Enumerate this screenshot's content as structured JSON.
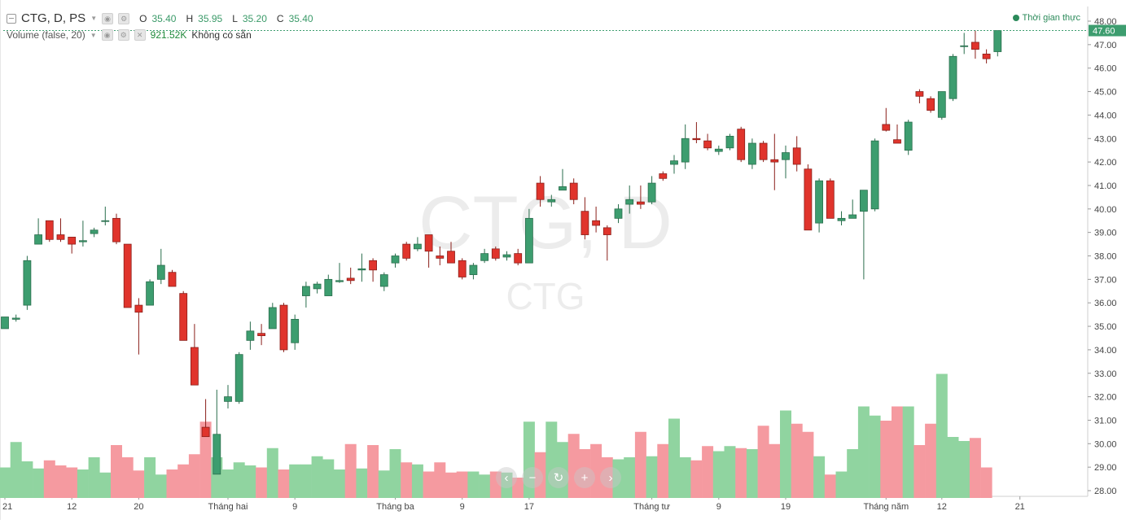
{
  "legend": {
    "symbol": "CTG, D, PS",
    "open_label": "O",
    "open_value": "35.40",
    "high_label": "H",
    "high_value": "35.95",
    "low_label": "L",
    "low_value": "35.20",
    "close_label": "C",
    "close_value": "35.40",
    "volume_label": "Volume (false, 20)",
    "volume_value": "921.52K",
    "volume_status": "Không có sẵn"
  },
  "realtime_label": "Thời gian thực",
  "watermark": {
    "main": "CTG, D",
    "sub": "CTG"
  },
  "navigation_icons": [
    "chevron-left-icon",
    "minus-icon",
    "reset-icon",
    "plus-icon",
    "chevron-right-icon"
  ],
  "colors": {
    "up": "#3d9d6f",
    "down": "#e0342c",
    "vol_up": "#90d4a0",
    "vol_down": "#f59aa0",
    "last_price_badge": "#3d9d6f",
    "axis_text": "#444444",
    "grid": "#e9e9e9"
  },
  "chart_data": {
    "type": "candlestick",
    "symbol": "CTG",
    "interval": "D",
    "last_price": "47.60",
    "y_axis": {
      "ticks": [
        "28.00",
        "29.00",
        "30.00",
        "31.00",
        "32.00",
        "33.00",
        "34.00",
        "35.00",
        "36.00",
        "37.00",
        "38.00",
        "39.00",
        "40.00",
        "41.00",
        "42.00",
        "43.00",
        "44.00",
        "45.00",
        "46.00",
        "47.00",
        "48.00"
      ],
      "range": [
        27.6,
        48.2
      ]
    },
    "x_axis": {
      "labels": [
        {
          "i": 0,
          "text": "21"
        },
        {
          "i": 6,
          "text": "12"
        },
        {
          "i": 12,
          "text": "20"
        },
        {
          "i": 20,
          "text": "Tháng hai"
        },
        {
          "i": 26,
          "text": "9"
        },
        {
          "i": 35,
          "text": "Tháng ba"
        },
        {
          "i": 41,
          "text": "9"
        },
        {
          "i": 47,
          "text": "17"
        },
        {
          "i": 58,
          "text": "Tháng tư"
        },
        {
          "i": 64,
          "text": "9"
        },
        {
          "i": 70,
          "text": "19"
        },
        {
          "i": 79,
          "text": "Tháng năm"
        },
        {
          "i": 84,
          "text": "12"
        },
        {
          "i": 91,
          "text": "21"
        }
      ]
    },
    "candles": [
      {
        "o": 34.9,
        "h": 35.3,
        "l": 34.9,
        "c": 35.4
      },
      {
        "o": 35.3,
        "h": 35.5,
        "l": 35.2,
        "c": 35.35
      },
      {
        "o": 35.9,
        "h": 38.0,
        "l": 35.7,
        "c": 37.8
      },
      {
        "o": 38.5,
        "h": 39.6,
        "l": 38.5,
        "c": 38.9
      },
      {
        "o": 39.5,
        "h": 39.5,
        "l": 38.6,
        "c": 38.7
      },
      {
        "o": 38.9,
        "h": 39.6,
        "l": 38.6,
        "c": 38.7
      },
      {
        "o": 38.8,
        "h": 38.8,
        "l": 38.1,
        "c": 38.5
      },
      {
        "o": 38.6,
        "h": 39.5,
        "l": 38.4,
        "c": 38.65
      },
      {
        "o": 38.95,
        "h": 39.2,
        "l": 38.8,
        "c": 39.1
      },
      {
        "o": 39.5,
        "h": 40.1,
        "l": 39.3,
        "c": 39.5
      },
      {
        "o": 39.6,
        "h": 39.8,
        "l": 38.5,
        "c": 38.6
      },
      {
        "o": 38.5,
        "h": 38.5,
        "l": 35.8,
        "c": 35.8
      },
      {
        "o": 35.9,
        "h": 36.2,
        "l": 33.8,
        "c": 35.6
      },
      {
        "o": 35.9,
        "h": 37.0,
        "l": 35.9,
        "c": 36.9
      },
      {
        "o": 37.0,
        "h": 38.3,
        "l": 36.8,
        "c": 37.6
      },
      {
        "o": 37.3,
        "h": 37.4,
        "l": 36.7,
        "c": 36.7
      },
      {
        "o": 36.4,
        "h": 36.5,
        "l": 34.4,
        "c": 34.4
      },
      {
        "o": 34.1,
        "h": 35.1,
        "l": 32.5,
        "c": 32.5
      },
      {
        "o": 30.7,
        "h": 31.9,
        "l": 30.3,
        "c": 30.3
      },
      {
        "o": 28.7,
        "h": 32.3,
        "l": 28.7,
        "c": 30.4
      },
      {
        "o": 31.8,
        "h": 32.5,
        "l": 31.5,
        "c": 32.0
      },
      {
        "o": 31.8,
        "h": 33.9,
        "l": 31.7,
        "c": 33.8
      },
      {
        "o": 34.4,
        "h": 35.2,
        "l": 34.0,
        "c": 34.8
      },
      {
        "o": 34.7,
        "h": 35.1,
        "l": 34.2,
        "c": 34.6
      },
      {
        "o": 34.9,
        "h": 36.0,
        "l": 34.9,
        "c": 35.8
      },
      {
        "o": 35.9,
        "h": 36.0,
        "l": 33.9,
        "c": 34.0
      },
      {
        "o": 34.3,
        "h": 35.5,
        "l": 34.0,
        "c": 35.3
      },
      {
        "o": 36.3,
        "h": 36.9,
        "l": 35.8,
        "c": 36.7
      },
      {
        "o": 36.6,
        "h": 36.9,
        "l": 36.4,
        "c": 36.8
      },
      {
        "o": 36.3,
        "h": 37.2,
        "l": 36.3,
        "c": 37.0
      },
      {
        "o": 36.9,
        "h": 37.7,
        "l": 36.85,
        "c": 36.95
      },
      {
        "o": 37.05,
        "h": 37.5,
        "l": 36.8,
        "c": 36.95
      },
      {
        "o": 37.4,
        "h": 38.1,
        "l": 36.9,
        "c": 37.45
      },
      {
        "o": 37.8,
        "h": 37.9,
        "l": 36.9,
        "c": 37.4
      },
      {
        "o": 36.7,
        "h": 37.3,
        "l": 36.5,
        "c": 37.2
      },
      {
        "o": 37.7,
        "h": 38.1,
        "l": 37.5,
        "c": 38.0
      },
      {
        "o": 38.5,
        "h": 38.6,
        "l": 37.8,
        "c": 37.9
      },
      {
        "o": 38.3,
        "h": 38.8,
        "l": 38.2,
        "c": 38.5
      },
      {
        "o": 38.9,
        "h": 38.9,
        "l": 37.5,
        "c": 38.2
      },
      {
        "o": 38.0,
        "h": 38.4,
        "l": 37.6,
        "c": 37.9
      },
      {
        "o": 38.2,
        "h": 38.6,
        "l": 37.7,
        "c": 37.7
      },
      {
        "o": 37.8,
        "h": 37.9,
        "l": 37.0,
        "c": 37.1
      },
      {
        "o": 37.2,
        "h": 37.7,
        "l": 37.0,
        "c": 37.6
      },
      {
        "o": 37.8,
        "h": 38.3,
        "l": 37.7,
        "c": 38.1
      },
      {
        "o": 38.3,
        "h": 38.4,
        "l": 37.8,
        "c": 37.9
      },
      {
        "o": 37.95,
        "h": 38.2,
        "l": 37.8,
        "c": 38.05
      },
      {
        "o": 38.1,
        "h": 38.3,
        "l": 37.6,
        "c": 37.7
      },
      {
        "o": 37.7,
        "h": 40.0,
        "l": 37.7,
        "c": 39.6
      },
      {
        "o": 41.1,
        "h": 41.4,
        "l": 40.1,
        "c": 40.4
      },
      {
        "o": 40.3,
        "h": 40.6,
        "l": 40.1,
        "c": 40.4
      },
      {
        "o": 40.8,
        "h": 41.7,
        "l": 40.8,
        "c": 40.95
      },
      {
        "o": 41.1,
        "h": 41.3,
        "l": 40.2,
        "c": 40.4
      },
      {
        "o": 39.9,
        "h": 40.5,
        "l": 38.7,
        "c": 38.9
      },
      {
        "o": 39.5,
        "h": 40.1,
        "l": 39.0,
        "c": 39.3
      },
      {
        "o": 39.2,
        "h": 39.3,
        "l": 37.8,
        "c": 38.9
      },
      {
        "o": 39.6,
        "h": 40.2,
        "l": 39.4,
        "c": 40.0
      },
      {
        "o": 40.2,
        "h": 41.0,
        "l": 39.8,
        "c": 40.4
      },
      {
        "o": 40.3,
        "h": 41.0,
        "l": 40.0,
        "c": 40.2
      },
      {
        "o": 40.3,
        "h": 41.4,
        "l": 40.2,
        "c": 41.1
      },
      {
        "o": 41.5,
        "h": 41.6,
        "l": 41.2,
        "c": 41.3
      },
      {
        "o": 41.9,
        "h": 42.3,
        "l": 41.5,
        "c": 42.05
      },
      {
        "o": 42.0,
        "h": 43.6,
        "l": 41.7,
        "c": 43.0
      },
      {
        "o": 43.0,
        "h": 43.7,
        "l": 42.8,
        "c": 42.95
      },
      {
        "o": 42.9,
        "h": 43.2,
        "l": 42.5,
        "c": 42.6
      },
      {
        "o": 42.45,
        "h": 42.7,
        "l": 42.3,
        "c": 42.55
      },
      {
        "o": 42.6,
        "h": 43.2,
        "l": 42.5,
        "c": 43.1
      },
      {
        "o": 43.4,
        "h": 43.5,
        "l": 42.0,
        "c": 42.1
      },
      {
        "o": 41.9,
        "h": 43.0,
        "l": 41.7,
        "c": 42.8
      },
      {
        "o": 42.8,
        "h": 42.9,
        "l": 42.0,
        "c": 42.1
      },
      {
        "o": 42.1,
        "h": 43.2,
        "l": 40.8,
        "c": 42.0
      },
      {
        "o": 42.1,
        "h": 42.7,
        "l": 41.3,
        "c": 42.4
      },
      {
        "o": 42.6,
        "h": 43.1,
        "l": 41.6,
        "c": 41.9
      },
      {
        "o": 41.7,
        "h": 41.9,
        "l": 39.1,
        "c": 39.1
      },
      {
        "o": 39.4,
        "h": 41.3,
        "l": 39.0,
        "c": 41.2
      },
      {
        "o": 41.2,
        "h": 41.3,
        "l": 39.6,
        "c": 39.6
      },
      {
        "o": 39.5,
        "h": 39.9,
        "l": 39.3,
        "c": 39.6
      },
      {
        "o": 39.6,
        "h": 40.4,
        "l": 39.6,
        "c": 39.75
      },
      {
        "o": 39.9,
        "h": 40.8,
        "l": 37.0,
        "c": 40.8
      },
      {
        "o": 40.0,
        "h": 43.0,
        "l": 39.9,
        "c": 42.9
      },
      {
        "o": 43.6,
        "h": 44.3,
        "l": 43.3,
        "c": 43.35
      },
      {
        "o": 42.95,
        "h": 43.6,
        "l": 42.8,
        "c": 42.8
      },
      {
        "o": 42.5,
        "h": 43.8,
        "l": 42.3,
        "c": 43.7
      },
      {
        "o": 45.0,
        "h": 45.1,
        "l": 44.5,
        "c": 44.8
      },
      {
        "o": 44.7,
        "h": 44.8,
        "l": 44.1,
        "c": 44.2
      },
      {
        "o": 43.9,
        "h": 45.0,
        "l": 43.8,
        "c": 45.0
      },
      {
        "o": 44.7,
        "h": 46.6,
        "l": 44.6,
        "c": 46.5
      },
      {
        "o": 46.95,
        "h": 47.5,
        "l": 46.6,
        "c": 46.95
      },
      {
        "o": 47.1,
        "h": 47.6,
        "l": 46.4,
        "c": 46.8
      },
      {
        "o": 46.6,
        "h": 46.8,
        "l": 46.2,
        "c": 46.4
      },
      {
        "o": 46.7,
        "h": 47.6,
        "l": 46.5,
        "c": 47.6
      }
    ],
    "volumes": [
      0.3,
      0.55,
      0.36,
      0.29,
      0.37,
      0.32,
      0.3,
      0.28,
      0.4,
      0.25,
      0.52,
      0.4,
      0.27,
      0.4,
      0.23,
      0.28,
      0.33,
      0.43,
      0.75,
      0.4,
      0.28,
      0.35,
      0.32,
      0.3,
      0.49,
      0.28,
      0.33,
      0.33,
      0.41,
      0.38,
      0.28,
      0.53,
      0.29,
      0.52,
      0.27,
      0.48,
      0.35,
      0.33,
      0.26,
      0.35,
      0.25,
      0.26,
      0.26,
      0.23,
      0.26,
      0.25,
      0.2,
      0.75,
      0.45,
      0.75,
      0.55,
      0.63,
      0.48,
      0.53,
      0.4,
      0.38,
      0.4,
      0.65,
      0.41,
      0.53,
      0.78,
      0.4,
      0.37,
      0.51,
      0.46,
      0.51,
      0.49,
      0.48,
      0.71,
      0.53,
      0.86,
      0.73,
      0.65,
      0.41,
      0.23,
      0.26,
      0.48,
      0.9,
      0.81,
      0.76,
      0.9,
      0.9,
      0.52,
      0.73,
      1.22,
      0.6,
      0.56,
      0.59,
      0.3,
      0.0,
      0.0
    ],
    "volume_scale_note": ""
  }
}
